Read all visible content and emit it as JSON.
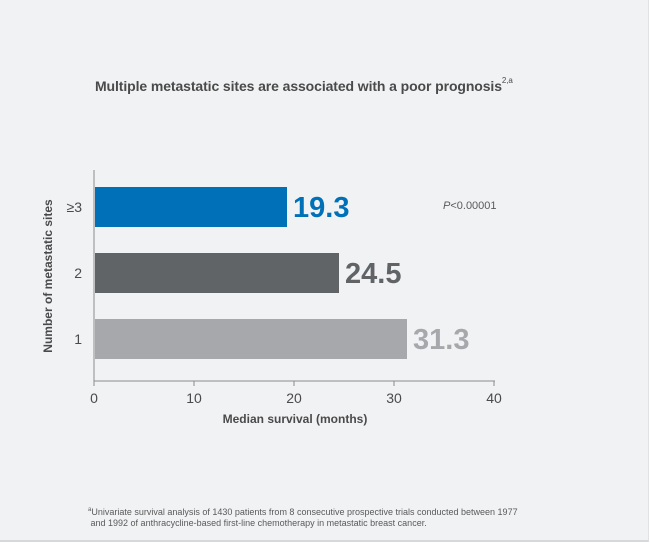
{
  "title": "Multiple metastatic sites are associated with a poor prognosis",
  "title_superscript": "2,a",
  "pvalue": {
    "italic": "P",
    "rest": "<0.00001"
  },
  "footnote": {
    "marker": "a",
    "lines": [
      "Univariate survival analysis of 1430 patients from 8 consecutive prospective trials conducted between 1977",
      "and 1992 of anthracycline-based first-line chemotherapy in metastatic breast cancer."
    ]
  },
  "chart_data": {
    "type": "bar",
    "orientation": "horizontal",
    "categories": [
      "≥3",
      "2",
      "1"
    ],
    "values": [
      19.3,
      24.5,
      31.3
    ],
    "value_labels": [
      "19.3",
      "24.5",
      "31.3"
    ],
    "bar_colors": [
      "#0071b8",
      "#616467",
      "#a6a8ab"
    ],
    "xlabel": "Median survival (months)",
    "ylabel": "Number of metastatic sites",
    "xlim": [
      0,
      40
    ],
    "xticks": [
      0,
      10,
      20,
      30,
      40
    ],
    "grid": false
  }
}
